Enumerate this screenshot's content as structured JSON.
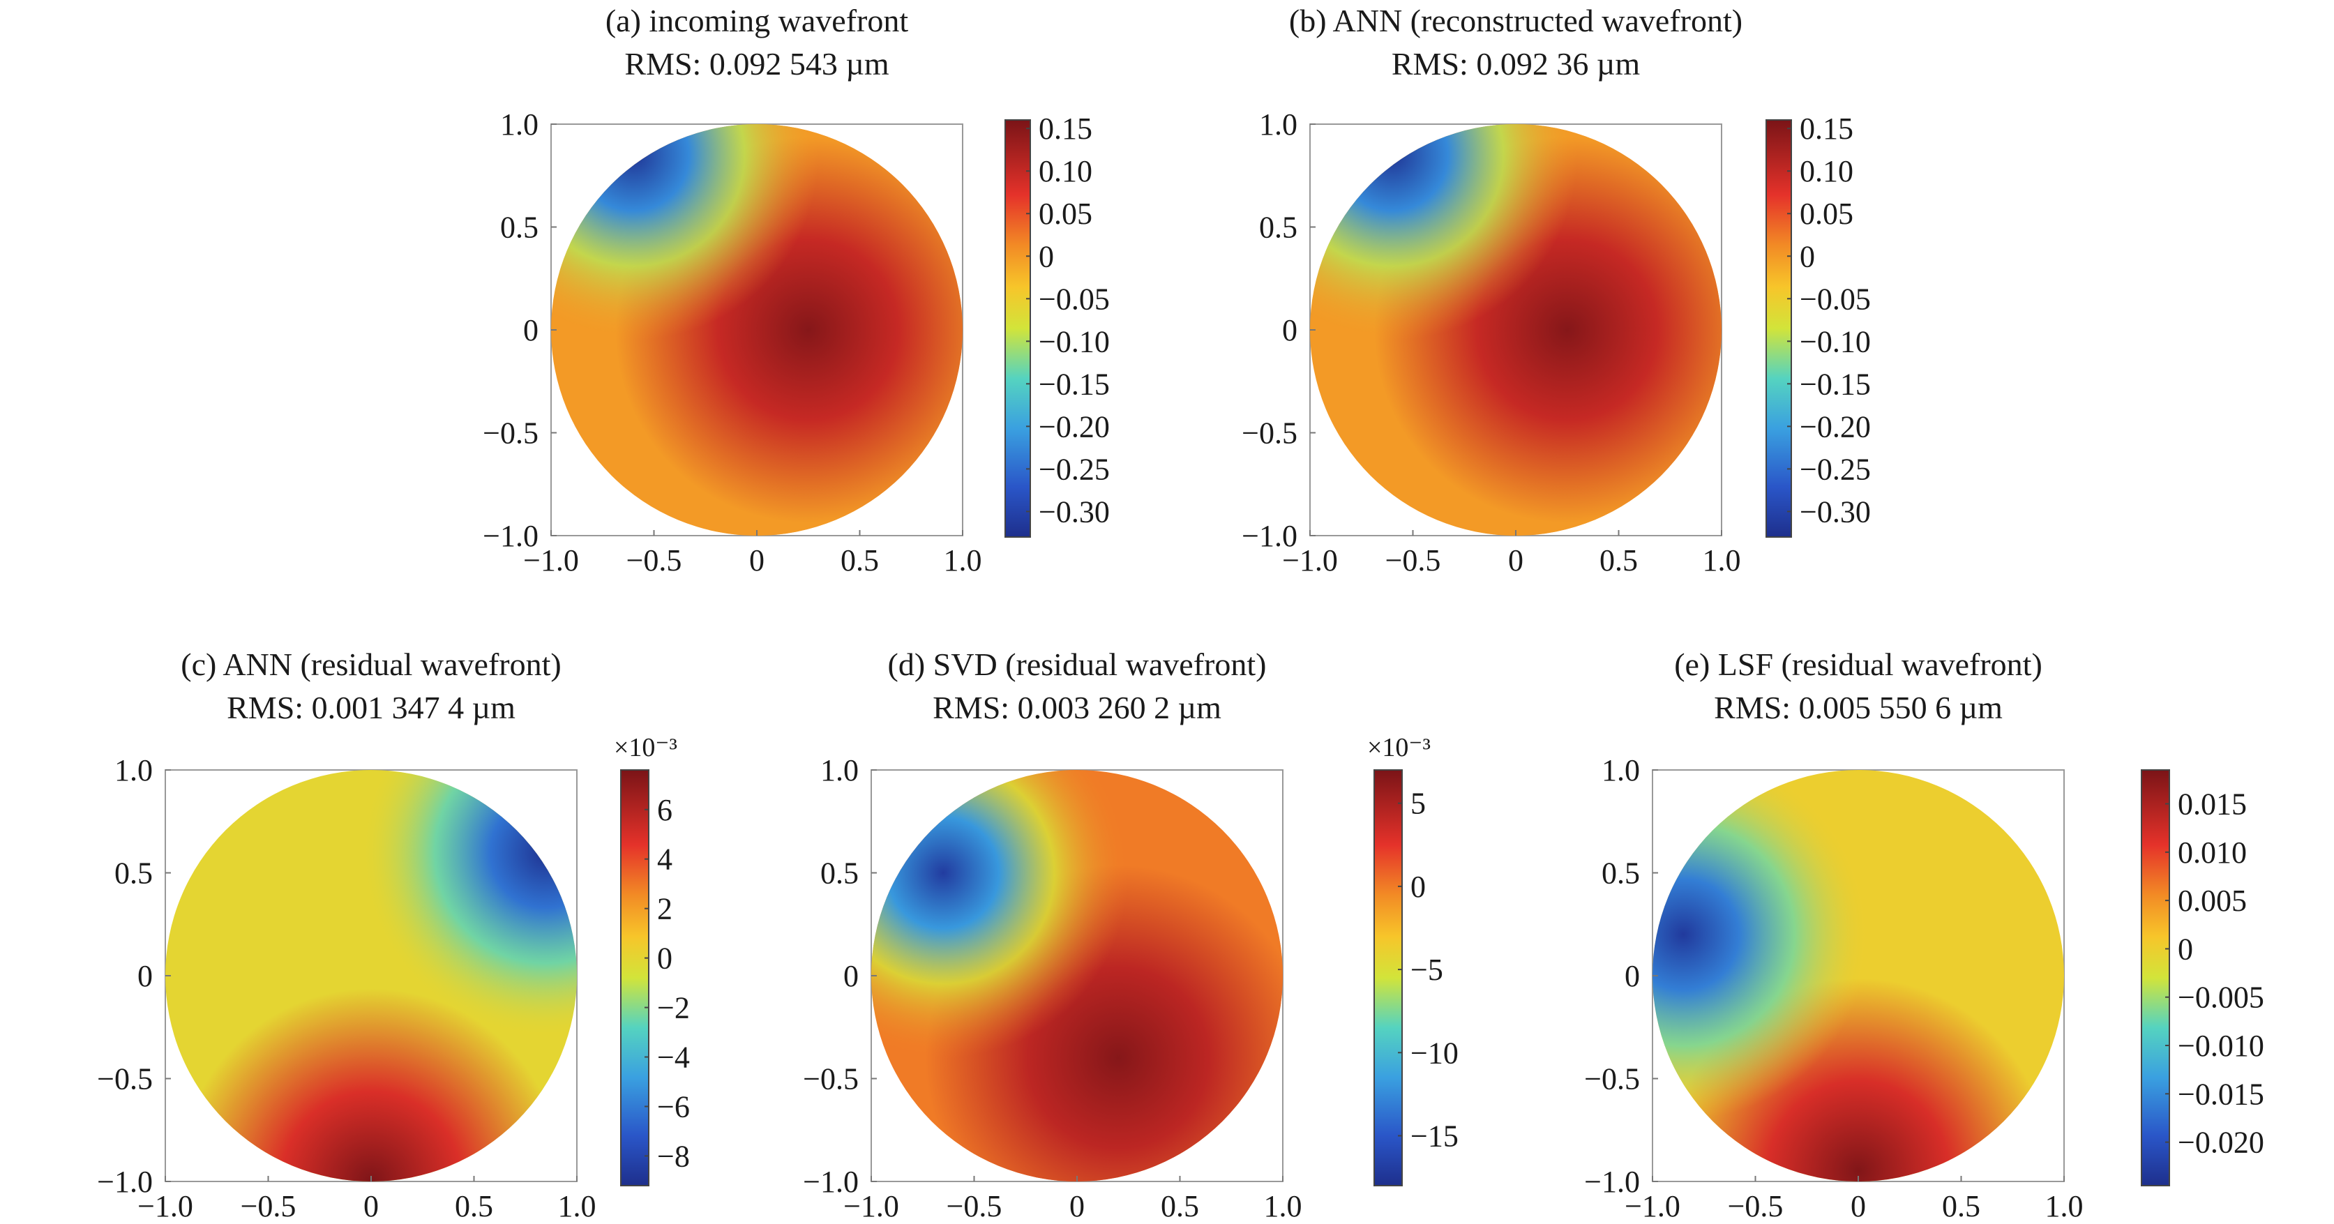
{
  "chart_data": [
    {
      "type": "heatmap",
      "id": "a",
      "title": "(a) incoming wavefront",
      "subtitle": "RMS: 0.092 543 µm",
      "x_ticks": [
        "−1.0",
        "−0.5",
        "0",
        "0.5",
        "1.0"
      ],
      "y_ticks": [
        "1.0",
        "0.5",
        "0",
        "−0.5",
        "−1.0"
      ],
      "xlim": [
        -1,
        1
      ],
      "ylim": [
        -1,
        1
      ],
      "colorbar": {
        "min": -0.33,
        "max": 0.16,
        "multiplier": "",
        "ticks": [
          {
            "value": 0.15,
            "label": "0.15"
          },
          {
            "value": 0.1,
            "label": "0.10"
          },
          {
            "value": 0.05,
            "label": "0.05"
          },
          {
            "value": 0,
            "label": "0"
          },
          {
            "value": -0.05,
            "label": "−0.05"
          },
          {
            "value": -0.1,
            "label": "−0.10"
          },
          {
            "value": -0.15,
            "label": "−0.15"
          },
          {
            "value": -0.2,
            "label": "−0.20"
          },
          {
            "value": -0.25,
            "label": "−0.25"
          },
          {
            "value": -0.3,
            "label": "−0.30"
          }
        ]
      },
      "peak": {
        "x": 0.25,
        "y": 0.0,
        "value": 0.15
      },
      "trough": {
        "x": -0.6,
        "y": 0.85,
        "value": -0.32
      }
    },
    {
      "type": "heatmap",
      "id": "b",
      "title": "(b) ANN (reconstructed wavefront)",
      "subtitle": "RMS: 0.092 36 µm",
      "x_ticks": [
        "−1.0",
        "−0.5",
        "0",
        "0.5",
        "1.0"
      ],
      "y_ticks": [
        "1.0",
        "0.5",
        "0",
        "−0.5",
        "−1.0"
      ],
      "xlim": [
        -1,
        1
      ],
      "ylim": [
        -1,
        1
      ],
      "colorbar": {
        "min": -0.33,
        "max": 0.16,
        "multiplier": "",
        "ticks": [
          {
            "value": 0.15,
            "label": "0.15"
          },
          {
            "value": 0.1,
            "label": "0.10"
          },
          {
            "value": 0.05,
            "label": "0.05"
          },
          {
            "value": 0,
            "label": "0"
          },
          {
            "value": -0.05,
            "label": "−0.05"
          },
          {
            "value": -0.1,
            "label": "−0.10"
          },
          {
            "value": -0.15,
            "label": "−0.15"
          },
          {
            "value": -0.2,
            "label": "−0.20"
          },
          {
            "value": -0.25,
            "label": "−0.25"
          },
          {
            "value": -0.3,
            "label": "−0.30"
          }
        ]
      },
      "peak": {
        "x": 0.25,
        "y": 0.0,
        "value": 0.15
      },
      "trough": {
        "x": -0.6,
        "y": 0.85,
        "value": -0.32
      }
    },
    {
      "type": "heatmap",
      "id": "c",
      "title": "(c) ANN (residual wavefront)",
      "subtitle": "RMS: 0.001 347 4 µm",
      "x_ticks": [
        "−1.0",
        "−0.5",
        "0",
        "0.5",
        "1.0"
      ],
      "y_ticks": [
        "1.0",
        "0.5",
        "0",
        "−0.5",
        "−1.0"
      ],
      "xlim": [
        -1,
        1
      ],
      "ylim": [
        -1,
        1
      ],
      "colorbar": {
        "min": -9.2,
        "max": 7.6,
        "multiplier": "×10⁻³",
        "ticks": [
          {
            "value": 6,
            "label": "6"
          },
          {
            "value": 4,
            "label": "4"
          },
          {
            "value": 2,
            "label": "2"
          },
          {
            "value": 0,
            "label": "0"
          },
          {
            "value": -2,
            "label": "−2"
          },
          {
            "value": -4,
            "label": "−4"
          },
          {
            "value": -6,
            "label": "−6"
          },
          {
            "value": -8,
            "label": "−8"
          }
        ]
      },
      "peak": {
        "x": 0.0,
        "y": -1.0,
        "value": 7.5
      },
      "trough": {
        "x": 0.85,
        "y": 0.6,
        "value": -9.0
      }
    },
    {
      "type": "heatmap",
      "id": "d",
      "title": "(d) SVD (residual wavefront)",
      "subtitle": "RMS: 0.003 260 2 µm",
      "x_ticks": [
        "−1.0",
        "−0.5",
        "0",
        "0.5",
        "1.0"
      ],
      "y_ticks": [
        "1.0",
        "0.5",
        "0",
        "−0.5",
        "−1.0"
      ],
      "xlim": [
        -1,
        1
      ],
      "ylim": [
        -1,
        1
      ],
      "colorbar": {
        "min": -18,
        "max": 7,
        "multiplier": "×10⁻³",
        "ticks": [
          {
            "value": 5,
            "label": "5"
          },
          {
            "value": 0,
            "label": "0"
          },
          {
            "value": -5,
            "label": "−5"
          },
          {
            "value": -10,
            "label": "−10"
          },
          {
            "value": -15,
            "label": "−15"
          }
        ]
      },
      "peak": {
        "x": 0.2,
        "y": -0.4,
        "value": 6.5
      },
      "trough": {
        "x": -0.65,
        "y": 0.5,
        "value": -17
      }
    },
    {
      "type": "heatmap",
      "id": "e",
      "title": "(e) LSF (residual wavefront)",
      "subtitle": "RMS: 0.005 550 6 µm",
      "x_ticks": [
        "−1.0",
        "−0.5",
        "0",
        "0.5",
        "1.0"
      ],
      "y_ticks": [
        "1.0",
        "0.5",
        "0",
        "−0.5",
        "−1.0"
      ],
      "xlim": [
        -1,
        1
      ],
      "ylim": [
        -1,
        1
      ],
      "colorbar": {
        "min": -0.0245,
        "max": 0.0185,
        "multiplier": "",
        "ticks": [
          {
            "value": 0.015,
            "label": "0.015"
          },
          {
            "value": 0.01,
            "label": "0.010"
          },
          {
            "value": 0.005,
            "label": "0.005"
          },
          {
            "value": 0,
            "label": "0"
          },
          {
            "value": -0.005,
            "label": "−0.005"
          },
          {
            "value": -0.01,
            "label": "−0.010"
          },
          {
            "value": -0.015,
            "label": "−0.015"
          },
          {
            "value": -0.02,
            "label": "−0.020"
          }
        ]
      },
      "peak": {
        "x": 0.0,
        "y": -0.95,
        "value": 0.018
      },
      "trough": {
        "x": -0.85,
        "y": 0.2,
        "value": -0.023
      }
    }
  ]
}
